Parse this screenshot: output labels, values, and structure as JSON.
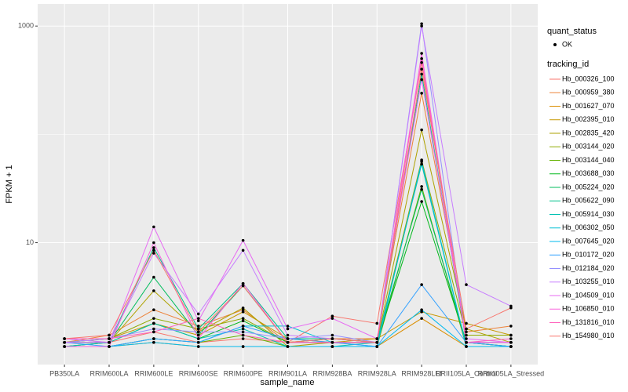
{
  "chart_data": {
    "type": "line",
    "x_label": "sample_name",
    "y_label": "FPKM + 1",
    "log_scale": true,
    "grid": true,
    "ylim": [
      0.75,
      1600
    ],
    "yticks": [
      10,
      1000
    ],
    "point_legend": {
      "title": "quant_status",
      "label": "OK"
    },
    "legend_title": "tracking_id",
    "categories": [
      "PB350LA",
      "RRIM600LA",
      "RRIM600LE",
      "RRIM600SE",
      "RRIM600PE",
      "RRIM901LA",
      "RRIM928BA",
      "RRIM928LA",
      "RRIM928LEI",
      "RRII105LA_Control",
      "RRII105LA_Stressed"
    ],
    "series": [
      {
        "name": "Hb_000326_100",
        "color": "#F8766D",
        "values": [
          1.3,
          1.2,
          1.5,
          1.2,
          1.3,
          1.2,
          2.1,
          1.8,
          460,
          1.2,
          1.2
        ]
      },
      {
        "name": "Hb_000959_380",
        "color": "#EC8239",
        "values": [
          1.2,
          1.4,
          2.4,
          1.7,
          2.4,
          1.2,
          1.3,
          1.3,
          240,
          1.5,
          1.7
        ]
      },
      {
        "name": "Hb_001627_070",
        "color": "#DB8E00",
        "values": [
          1.1,
          1.1,
          1.2,
          1.1,
          1.1,
          1.1,
          1.1,
          1.1,
          2.0,
          1.1,
          1.1
        ]
      },
      {
        "name": "Hb_002395_010",
        "color": "#C79800",
        "values": [
          1.2,
          1.3,
          1.8,
          1.4,
          2.3,
          1.3,
          1.2,
          1.3,
          2.3,
          1.8,
          1.4
        ]
      },
      {
        "name": "Hb_002835_420",
        "color": "#AEA200",
        "values": [
          1.1,
          1.2,
          3.6,
          1.5,
          2.5,
          1.1,
          1.2,
          1.2,
          110,
          1.6,
          1.2
        ]
      },
      {
        "name": "Hb_003144_020",
        "color": "#8FAA00",
        "values": [
          1.2,
          1.3,
          2.0,
          1.6,
          2.0,
          1.2,
          1.3,
          1.2,
          58,
          1.4,
          1.4
        ]
      },
      {
        "name": "Hb_003144_040",
        "color": "#64B200",
        "values": [
          1.1,
          1.1,
          1.3,
          1.2,
          1.4,
          1.1,
          1.1,
          1.1,
          33,
          1.1,
          1.1
        ]
      },
      {
        "name": "Hb_003688_030",
        "color": "#00B81B",
        "values": [
          1.2,
          1.2,
          1.8,
          1.3,
          1.9,
          1.2,
          1.2,
          1.2,
          24,
          1.2,
          1.1
        ]
      },
      {
        "name": "Hb_005224_020",
        "color": "#00BD5C",
        "values": [
          1.1,
          1.2,
          4.8,
          1.4,
          4.0,
          1.2,
          1.2,
          1.2,
          31,
          1.2,
          1.1
        ]
      },
      {
        "name": "Hb_005622_090",
        "color": "#00C08B",
        "values": [
          1.2,
          1.2,
          9.0,
          1.6,
          4.2,
          1.3,
          1.3,
          1.2,
          360,
          1.2,
          1.2
        ]
      },
      {
        "name": "Hb_005914_030",
        "color": "#00C1B2",
        "values": [
          1.1,
          1.2,
          1.8,
          1.3,
          1.6,
          1.1,
          1.1,
          1.2,
          53,
          1.1,
          1.1
        ]
      },
      {
        "name": "Hb_006302_050",
        "color": "#00BFD4",
        "values": [
          1.1,
          1.1,
          1.3,
          1.2,
          1.7,
          1.7,
          1.2,
          1.1,
          56,
          1.1,
          1.1
        ]
      },
      {
        "name": "Hb_007645_020",
        "color": "#00BAEE",
        "values": [
          1.1,
          1.1,
          1.2,
          1.1,
          1.1,
          1.1,
          1.1,
          1.1,
          2.4,
          1.1,
          1.1
        ]
      },
      {
        "name": "Hb_010172_020",
        "color": "#35A2FF",
        "values": [
          1.2,
          1.1,
          1.3,
          1.2,
          1.7,
          1.3,
          1.2,
          1.1,
          4.1,
          1.2,
          1.1
        ]
      },
      {
        "name": "Hb_012184_020",
        "color": "#9590FF",
        "values": [
          1.2,
          1.3,
          1.6,
          1.5,
          1.5,
          1.3,
          1.4,
          1.2,
          1050,
          1.2,
          1.2
        ]
      },
      {
        "name": "Hb_103255_010",
        "color": "#C77CFF",
        "values": [
          1.3,
          1.2,
          8.0,
          2.2,
          8.5,
          1.4,
          1.3,
          1.2,
          1000,
          4.1,
          2.6
        ]
      },
      {
        "name": "Hb_104509_010",
        "color": "#E76BF3",
        "values": [
          1.2,
          1.2,
          14,
          1.9,
          10.5,
          1.6,
          2.0,
          1.3,
          320,
          1.3,
          1.2
        ]
      },
      {
        "name": "Hb_106850_010",
        "color": "#F962DD",
        "values": [
          1.1,
          1.1,
          10,
          1.3,
          4.2,
          1.2,
          1.2,
          1.2,
          560,
          1.2,
          1.2
        ]
      },
      {
        "name": "Hb_131816_010",
        "color": "#FF62BC",
        "values": [
          1.3,
          1.3,
          1.5,
          2.0,
          1.4,
          1.2,
          1.2,
          1.2,
          500,
          1.2,
          1.3
        ]
      },
      {
        "name": "Hb_154980_010",
        "color": "#F8766D",
        "values": [
          1.3,
          1.4,
          8.5,
          1.5,
          4.0,
          1.2,
          1.3,
          1.2,
          400,
          1.6,
          2.5
        ]
      }
    ]
  }
}
